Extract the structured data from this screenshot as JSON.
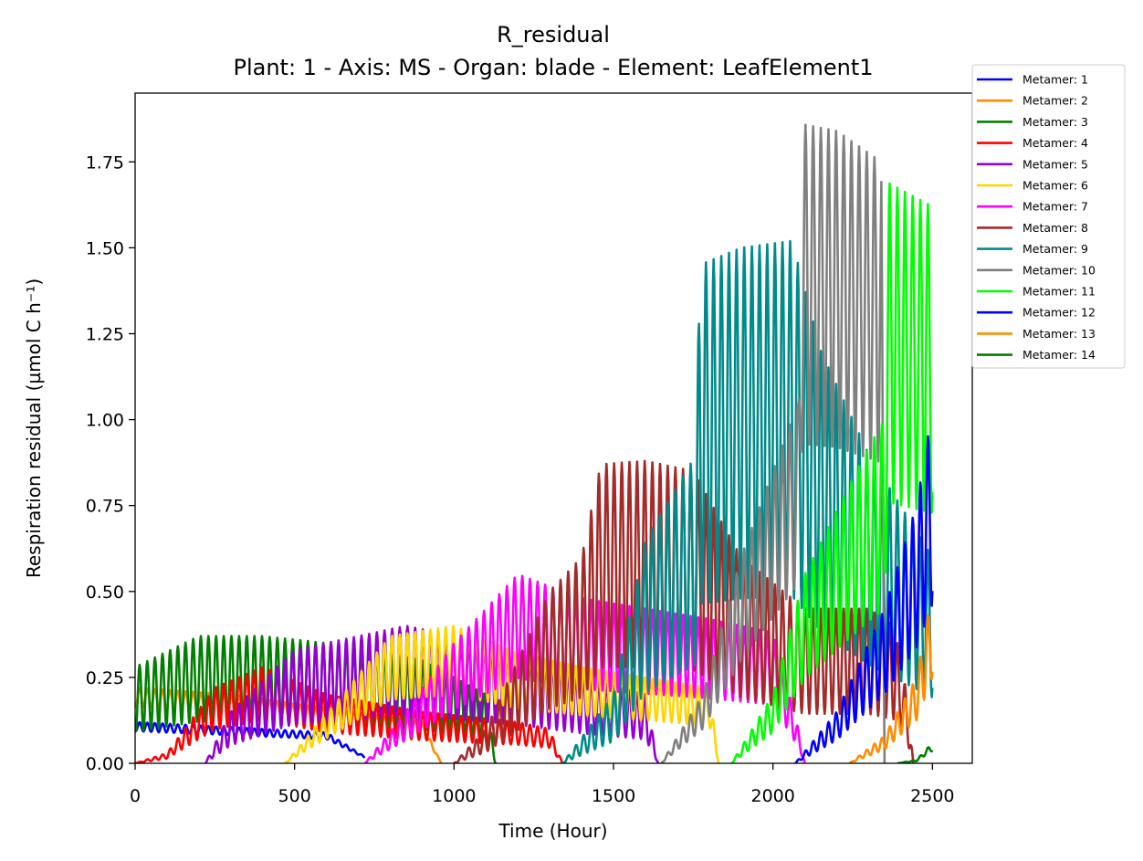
{
  "chart_data": {
    "type": "line",
    "title": "R_residual",
    "subtitle": "Plant: 1 - Axis: MS - Organ: blade - Element: LeafElement1",
    "xlabel": "Time (Hour)",
    "ylabel": "Respiration residual (µmol C h⁻¹)",
    "xlim": [
      0,
      2625
    ],
    "ylim": [
      0,
      1.95
    ],
    "xticks": [
      0,
      500,
      1000,
      1500,
      2000,
      2500
    ],
    "xtick_labels": [
      "0",
      "500",
      "1000",
      "1500",
      "2000",
      "2500"
    ],
    "yticks": [
      0,
      0.25,
      0.5,
      0.75,
      1.0,
      1.25,
      1.5,
      1.75
    ],
    "ytick_labels": [
      "0.00",
      "0.25",
      "0.50",
      "0.75",
      "1.00",
      "1.25",
      "1.50",
      "1.75"
    ],
    "grid": false,
    "legend_position": "outside-top-right",
    "period_hours": 24,
    "series": [
      {
        "name": "Metamer: 1",
        "color": "#0000ff",
        "points": [
          [
            0,
            0.12
          ],
          [
            200,
            0.11
          ],
          [
            400,
            0.1
          ],
          [
            600,
            0.09
          ],
          [
            720,
            0.02
          ]
        ],
        "min_ratio": 0.78
      },
      {
        "name": "Metamer: 2",
        "color": "#ff8c00",
        "points": [
          [
            0,
            0.22
          ],
          [
            300,
            0.2
          ],
          [
            600,
            0.16
          ],
          [
            900,
            0.12
          ],
          [
            960,
            0.0
          ]
        ],
        "min_ratio": 0.75
      },
      {
        "name": "Metamer: 3",
        "color": "#008000",
        "points": [
          [
            0,
            0.28
          ],
          [
            200,
            0.37
          ],
          [
            400,
            0.37
          ],
          [
            600,
            0.35
          ],
          [
            900,
            0.3
          ],
          [
            1100,
            0.2
          ],
          [
            1130,
            0.0
          ]
        ],
        "min_ratio": 0.33
      },
      {
        "name": "Metamer: 4",
        "color": "#ff0000",
        "points": [
          [
            0,
            0.0
          ],
          [
            100,
            0.03
          ],
          [
            250,
            0.22
          ],
          [
            400,
            0.28
          ],
          [
            600,
            0.2
          ],
          [
            900,
            0.15
          ],
          [
            1200,
            0.12
          ],
          [
            1300,
            0.1
          ],
          [
            1340,
            0.0
          ]
        ],
        "min_ratio": 0.45
      },
      {
        "name": "Metamer: 5",
        "color": "#9400d3",
        "points": [
          [
            220,
            0.0
          ],
          [
            300,
            0.15
          ],
          [
            500,
            0.33
          ],
          [
            700,
            0.37
          ],
          [
            850,
            0.4
          ],
          [
            1000,
            0.37
          ],
          [
            1200,
            0.32
          ],
          [
            1400,
            0.25
          ],
          [
            1600,
            0.2
          ],
          [
            1640,
            0.0
          ]
        ],
        "min_ratio": 0.35
      },
      {
        "name": "Metamer: 6",
        "color": "#ffd700",
        "points": [
          [
            470,
            0.0
          ],
          [
            650,
            0.2
          ],
          [
            800,
            0.37
          ],
          [
            1000,
            0.4
          ],
          [
            1200,
            0.32
          ],
          [
            1400,
            0.28
          ],
          [
            1600,
            0.25
          ],
          [
            1800,
            0.22
          ],
          [
            1830,
            0.0
          ]
        ],
        "min_ratio": 0.5
      },
      {
        "name": "Metamer: 7",
        "color": "#ff00ff",
        "points": [
          [
            720,
            0.0
          ],
          [
            850,
            0.15
          ],
          [
            1000,
            0.35
          ],
          [
            1100,
            0.45
          ],
          [
            1200,
            0.55
          ],
          [
            1400,
            0.48
          ],
          [
            1600,
            0.45
          ],
          [
            1800,
            0.42
          ],
          [
            2000,
            0.38
          ],
          [
            2080,
            0.1
          ],
          [
            2100,
            0.0
          ]
        ],
        "min_ratio": 0.45
      },
      {
        "name": "Metamer: 8",
        "color": "#a52a2a",
        "points": [
          [
            1000,
            0.0
          ],
          [
            1100,
            0.1
          ],
          [
            1300,
            0.5
          ],
          [
            1400,
            0.6
          ],
          [
            1460,
            0.87
          ],
          [
            1600,
            0.88
          ],
          [
            1750,
            0.85
          ],
          [
            1900,
            0.6
          ],
          [
            2100,
            0.45
          ],
          [
            2300,
            0.45
          ],
          [
            2380,
            0.4
          ],
          [
            2420,
            0.2
          ],
          [
            2440,
            0.0
          ]
        ],
        "min_ratio": 0.32
      },
      {
        "name": "Metamer: 9",
        "color": "#008b8b",
        "points": [
          [
            1340,
            0.0
          ],
          [
            1500,
            0.2
          ],
          [
            1600,
            0.65
          ],
          [
            1760,
            0.9
          ],
          [
            1770,
            1.45
          ],
          [
            1900,
            1.5
          ],
          [
            2060,
            1.52
          ],
          [
            2150,
            1.2
          ],
          [
            2300,
            0.9
          ],
          [
            2500,
            0.6
          ]
        ],
        "min_ratio": 0.32
      },
      {
        "name": "Metamer: 10",
        "color": "#808080",
        "points": [
          [
            1650,
            0.0
          ],
          [
            1780,
            0.2
          ],
          [
            1900,
            0.6
          ],
          [
            2080,
            1.05
          ],
          [
            2090,
            1.86
          ],
          [
            2200,
            1.84
          ],
          [
            2340,
            1.75
          ],
          [
            2350,
            0.0
          ]
        ],
        "min_ratio": 0.5
      },
      {
        "name": "Metamer: 11",
        "color": "#00ff00",
        "points": [
          [
            1870,
            0.0
          ],
          [
            2000,
            0.2
          ],
          [
            2100,
            0.55
          ],
          [
            2300,
            0.92
          ],
          [
            2350,
            1.0
          ],
          [
            2360,
            1.69
          ],
          [
            2500,
            1.62
          ]
        ],
        "min_ratio": 0.45
      },
      {
        "name": "Metamer: 12",
        "color": "#0000ff",
        "points": [
          [
            2070,
            0.0
          ],
          [
            2200,
            0.15
          ],
          [
            2350,
            0.45
          ],
          [
            2450,
            0.75
          ],
          [
            2500,
            1.03
          ]
        ],
        "min_ratio": 0.45
      },
      {
        "name": "Metamer: 13",
        "color": "#ff8c00",
        "points": [
          [
            2240,
            0.0
          ],
          [
            2350,
            0.08
          ],
          [
            2450,
            0.25
          ],
          [
            2500,
            0.5
          ]
        ],
        "min_ratio": 0.5
      },
      {
        "name": "Metamer: 14",
        "color": "#008000",
        "points": [
          [
            2390,
            0.0
          ],
          [
            2450,
            0.01
          ],
          [
            2500,
            0.06
          ]
        ],
        "min_ratio": 0.6
      }
    ]
  }
}
